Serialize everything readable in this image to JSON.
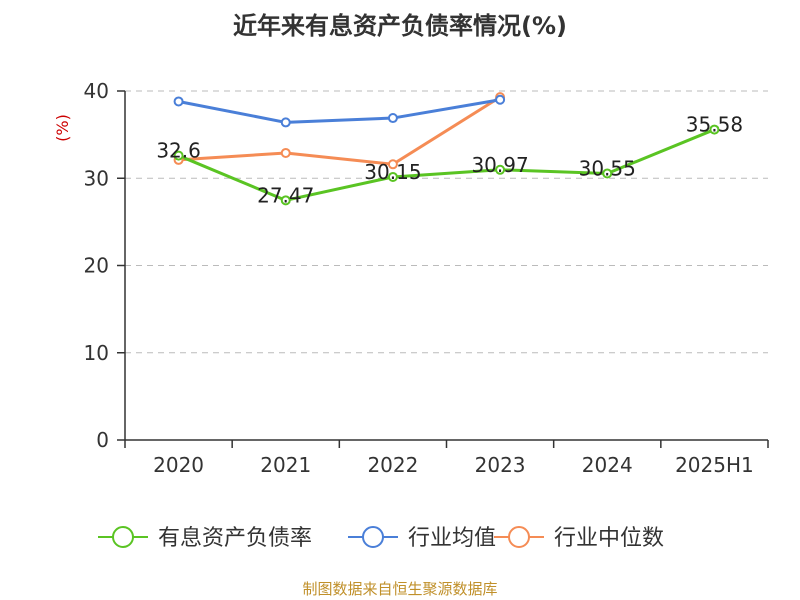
{
  "title": "近年来有息资产负债率情况(%)",
  "source": "制图数据来自恒生聚源数据库",
  "chart_data": {
    "type": "line",
    "title": "近年来有息资产负债率情况(%)",
    "ylabel": "(%)",
    "categories": [
      "2020",
      "2021",
      "2022",
      "2023",
      "2024",
      "2025H1"
    ],
    "ylim": [
      0,
      40
    ],
    "yticks": [
      0,
      10,
      20,
      30,
      40
    ],
    "grid": true,
    "legend": "bottom",
    "series": [
      {
        "name": "有息资产负债率",
        "color": "#5ac423",
        "values": [
          32.6,
          27.47,
          30.15,
          30.97,
          30.55,
          35.58
        ],
        "labels": [
          "32.6",
          "27.47",
          "30.15",
          "30.97",
          "30.55",
          "35.58"
        ]
      },
      {
        "name": "行业均值",
        "color": "#4a7fd8",
        "values": [
          38.8,
          36.4,
          36.9,
          39.0,
          null,
          null
        ]
      },
      {
        "name": "行业中位数",
        "color": "#f58c55",
        "values": [
          32.1,
          32.9,
          31.6,
          39.3,
          null,
          null
        ]
      }
    ]
  }
}
